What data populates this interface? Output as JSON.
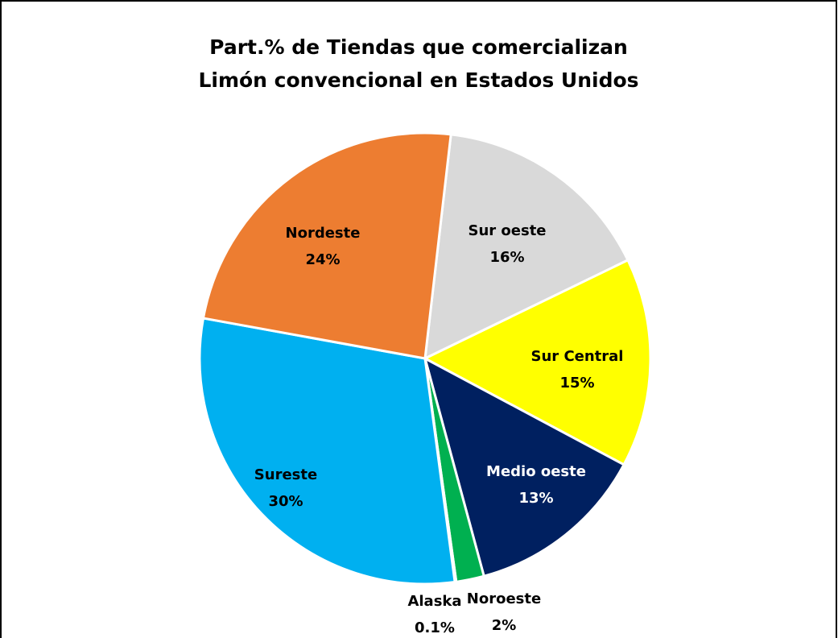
{
  "chart_data": {
    "type": "pie",
    "title": "Part.% de Tiendas que comercializan Limón convencional en Estados Unidos",
    "categories": [
      "Sur oeste",
      "Sur Central",
      "Medio oeste",
      "Noroeste",
      "Alaska",
      "Sureste",
      "Nordeste"
    ],
    "values": [
      16,
      15,
      13,
      2,
      0.1,
      30,
      24
    ],
    "value_labels": [
      "16%",
      "15%",
      "13%",
      "2%",
      "0.1%",
      "30%",
      "24%"
    ],
    "colors": [
      "#d9d9d9",
      "#ffff00",
      "#002060",
      "#00b050",
      "#7030a0",
      "#00b0f0",
      "#ed7d31"
    ]
  }
}
